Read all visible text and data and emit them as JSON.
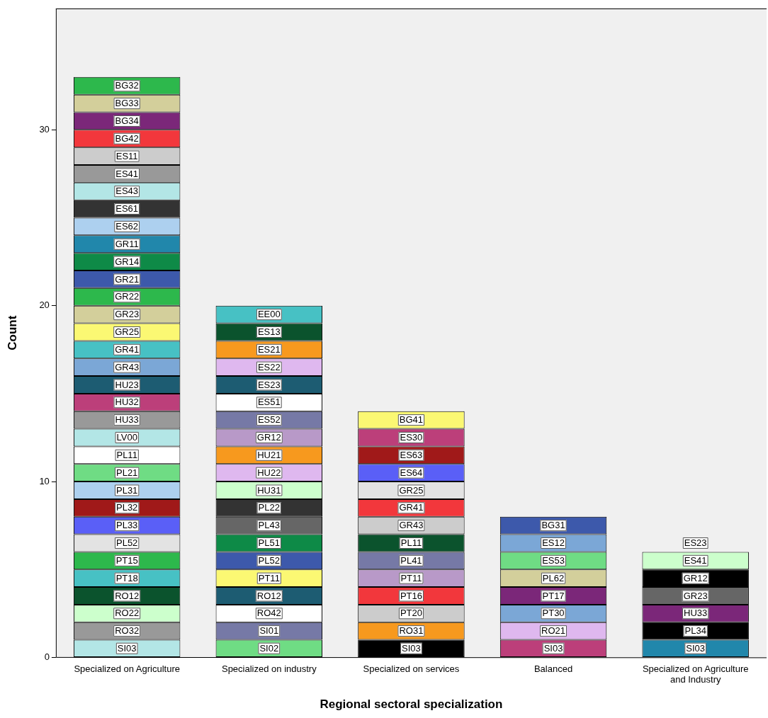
{
  "chart_data": {
    "type": "bar",
    "stacked": true,
    "xlabel": "Regional sectoral specialization",
    "ylabel": "Count",
    "categories": [
      "Specialized on Agriculture",
      "Specialized on industry",
      "Specialized on services",
      "Balanced",
      "Specialized on Agriculture and Industry"
    ],
    "ylim": [
      0,
      36.9
    ],
    "yticks": [
      0,
      10,
      20,
      30
    ],
    "grid": false,
    "legend": false,
    "series": [
      {
        "values": [
          1,
          1,
          1,
          1,
          1
        ],
        "colors": [
          "#b3e6e6",
          "#6fdc84",
          "#000000",
          "#bc3f7a",
          "#2187ab"
        ],
        "value_labels": [
          "SI03",
          "SI02",
          "SI03",
          "SI03",
          "SI03"
        ]
      },
      {
        "values": [
          1,
          1,
          1,
          1,
          1
        ],
        "colors": [
          "#999999",
          "#7679a6",
          "#f7991e",
          "#dfb8ef",
          "#000000"
        ],
        "value_labels": [
          "RO32",
          "SI01",
          "RO31",
          "RO21",
          "PL34"
        ]
      },
      {
        "values": [
          1,
          1,
          1,
          1,
          1
        ],
        "colors": [
          "#ccffcc",
          "#ffffff",
          "#cccccc",
          "#7ba7d6",
          "#7b2779"
        ],
        "value_labels": [
          "RO22",
          "RO42",
          "PT20",
          "PT30",
          "HU33"
        ]
      },
      {
        "values": [
          1,
          1,
          1,
          1,
          1
        ],
        "colors": [
          "#0b532d",
          "#1d5c72",
          "#f2373c",
          "#7b2779",
          "#666666"
        ],
        "value_labels": [
          "RO12",
          "RO12",
          "PT16",
          "PT17",
          "GR23"
        ]
      },
      {
        "values": [
          1,
          1,
          1,
          1,
          1
        ],
        "colors": [
          "#47c1c4",
          "#fbf873",
          "#b899c8",
          "#d3cf9b",
          "#000000"
        ],
        "value_labels": [
          "PT18",
          "PT11",
          "PT11",
          "PL62",
          "GR12"
        ]
      },
      {
        "values": [
          1,
          1,
          1,
          1,
          1
        ],
        "colors": [
          "#2db84c",
          "#3d59ab",
          "#7679a6",
          "#6fdc84",
          "#ccffcc"
        ],
        "value_labels": [
          "PT15",
          "PL52",
          "PL41",
          "ES53",
          "ES41"
        ]
      },
      {
        "values": [
          1,
          1,
          1,
          1,
          null
        ],
        "colors": [
          "#e3e3e3",
          "#0e8a47",
          "#0b532d",
          "#7ba7d6",
          null
        ],
        "value_labels": [
          "PL52",
          "PL51",
          "PL11",
          "ES12",
          null
        ]
      },
      {
        "values": [
          1,
          1,
          1,
          1,
          null
        ],
        "colors": [
          "#5a5ff7",
          "#666666",
          "#cccccc",
          "#3d59ab",
          null
        ],
        "value_labels": [
          "PL33",
          "PL43",
          "GR43",
          "BG31",
          null
        ]
      },
      {
        "values": [
          1,
          1,
          1,
          null,
          null
        ],
        "colors": [
          "#a01919",
          "#333333",
          "#f2373c",
          null,
          null
        ],
        "value_labels": [
          "PL32",
          "PL22",
          "GR41",
          null,
          null
        ]
      },
      {
        "values": [
          1,
          1,
          1,
          null,
          null
        ],
        "colors": [
          "#add0ef",
          "#ccffcc",
          "#e3e3e3",
          null,
          null
        ],
        "value_labels": [
          "PL31",
          "HU31",
          "GR25",
          null,
          null
        ]
      },
      {
        "values": [
          1,
          1,
          1,
          null,
          null
        ],
        "colors": [
          "#6fdc84",
          "#dfb8ef",
          "#5a5ff7",
          null,
          null
        ],
        "value_labels": [
          "PL21",
          "HU22",
          "ES64",
          null,
          null
        ]
      },
      {
        "values": [
          1,
          1,
          1,
          null,
          null
        ],
        "colors": [
          "#ffffff",
          "#f7991e",
          "#a01919",
          null,
          null
        ],
        "value_labels": [
          "PL11",
          "HU21",
          "ES63",
          null,
          null
        ]
      },
      {
        "values": [
          1,
          1,
          1,
          null,
          null
        ],
        "colors": [
          "#b3e6e6",
          "#b899c8",
          "#bc3f7a",
          null,
          null
        ],
        "value_labels": [
          "LV00",
          "GR12",
          "ES30",
          null,
          null
        ]
      },
      {
        "values": [
          1,
          1,
          1,
          null,
          null
        ],
        "colors": [
          "#999999",
          "#7679a6",
          "#fbf873",
          null,
          null
        ],
        "value_labels": [
          "HU33",
          "ES52",
          "BG41",
          null,
          null
        ]
      },
      {
        "values": [
          1,
          1,
          null,
          null,
          null
        ],
        "colors": [
          "#bc3f7a",
          "#ffffff",
          null,
          null,
          null
        ],
        "value_labels": [
          "HU32",
          "ES51",
          null,
          null,
          null
        ]
      },
      {
        "values": [
          1,
          1,
          null,
          null,
          null
        ],
        "colors": [
          "#1d5c72",
          "#1d5c72",
          null,
          null,
          null
        ],
        "value_labels": [
          "HU23",
          "ES23",
          null,
          null,
          null
        ]
      },
      {
        "values": [
          1,
          1,
          null,
          null,
          null
        ],
        "colors": [
          "#7ba7d6",
          "#dfb8ef",
          null,
          null,
          null
        ],
        "value_labels": [
          "GR43",
          "ES22",
          null,
          null,
          null
        ]
      },
      {
        "values": [
          1,
          1,
          null,
          null,
          null
        ],
        "colors": [
          "#47c1c4",
          "#f7991e",
          null,
          null,
          null
        ],
        "value_labels": [
          "GR41",
          "ES21",
          null,
          null,
          null
        ]
      },
      {
        "values": [
          1,
          1,
          null,
          null,
          null
        ],
        "colors": [
          "#fbf873",
          "#0b532d",
          null,
          null,
          null
        ],
        "value_labels": [
          "GR25",
          "ES13",
          null,
          null,
          null
        ]
      },
      {
        "values": [
          1,
          1,
          null,
          null,
          null
        ],
        "colors": [
          "#d3cf9b",
          "#47c1c4",
          null,
          null,
          null
        ],
        "value_labels": [
          "GR23",
          "EE00",
          null,
          null,
          null
        ]
      },
      {
        "values": [
          1,
          null,
          null,
          null,
          null
        ],
        "colors": [
          "#2db84c",
          null,
          null,
          null,
          null
        ],
        "value_labels": [
          "GR22",
          null,
          null,
          null,
          null
        ]
      },
      {
        "values": [
          1,
          null,
          null,
          null,
          null
        ],
        "colors": [
          "#3d59ab",
          null,
          null,
          null,
          null
        ],
        "value_labels": [
          "GR21",
          null,
          null,
          null,
          null
        ]
      },
      {
        "values": [
          1,
          null,
          null,
          null,
          null
        ],
        "colors": [
          "#0e8a47",
          null,
          null,
          null,
          null
        ],
        "value_labels": [
          "GR14",
          null,
          null,
          null,
          null
        ]
      },
      {
        "values": [
          1,
          null,
          null,
          null,
          null
        ],
        "colors": [
          "#2187ab",
          null,
          null,
          null,
          null
        ],
        "value_labels": [
          "GR11",
          null,
          null,
          null,
          null
        ]
      },
      {
        "values": [
          1,
          null,
          null,
          null,
          null
        ],
        "colors": [
          "#add0ef",
          null,
          null,
          null,
          null
        ],
        "value_labels": [
          "ES62",
          null,
          null,
          null,
          null
        ]
      },
      {
        "values": [
          1,
          null,
          null,
          null,
          null
        ],
        "colors": [
          "#333333",
          null,
          null,
          null,
          null
        ],
        "value_labels": [
          "ES61",
          null,
          null,
          null,
          null
        ]
      },
      {
        "values": [
          1,
          null,
          null,
          null,
          null
        ],
        "colors": [
          "#b3e6e6",
          null,
          null,
          null,
          null
        ],
        "value_labels": [
          "ES43",
          null,
          null,
          null,
          null
        ]
      },
      {
        "values": [
          1,
          null,
          null,
          null,
          null
        ],
        "colors": [
          "#999999",
          null,
          null,
          null,
          null
        ],
        "value_labels": [
          "ES41",
          null,
          null,
          null,
          null
        ]
      },
      {
        "values": [
          1,
          null,
          null,
          null,
          null
        ],
        "colors": [
          "#cccccc",
          null,
          null,
          null,
          null
        ],
        "value_labels": [
          "ES11",
          null,
          null,
          null,
          null
        ]
      },
      {
        "values": [
          1,
          null,
          null,
          null,
          null
        ],
        "colors": [
          "#f2373c",
          null,
          null,
          null,
          null
        ],
        "value_labels": [
          "BG42",
          null,
          null,
          null,
          null
        ]
      },
      {
        "values": [
          1,
          null,
          null,
          null,
          null
        ],
        "colors": [
          "#7b2779",
          null,
          null,
          null,
          null
        ],
        "value_labels": [
          "BG34",
          null,
          null,
          null,
          null
        ]
      },
      {
        "values": [
          1,
          null,
          null,
          null,
          null
        ],
        "colors": [
          "#d3cf9b",
          null,
          null,
          null,
          null
        ],
        "value_labels": [
          "BG33",
          null,
          null,
          null,
          null
        ]
      },
      {
        "values": [
          1,
          null,
          null,
          null,
          null
        ],
        "colors": [
          "#2db84c",
          null,
          null,
          null,
          null
        ],
        "value_labels": [
          "BG32",
          null,
          null,
          null,
          null
        ]
      }
    ],
    "annotations": [
      {
        "text": "ES23",
        "x": "Specialized on Agriculture and Industry",
        "y": 6.5
      }
    ]
  }
}
